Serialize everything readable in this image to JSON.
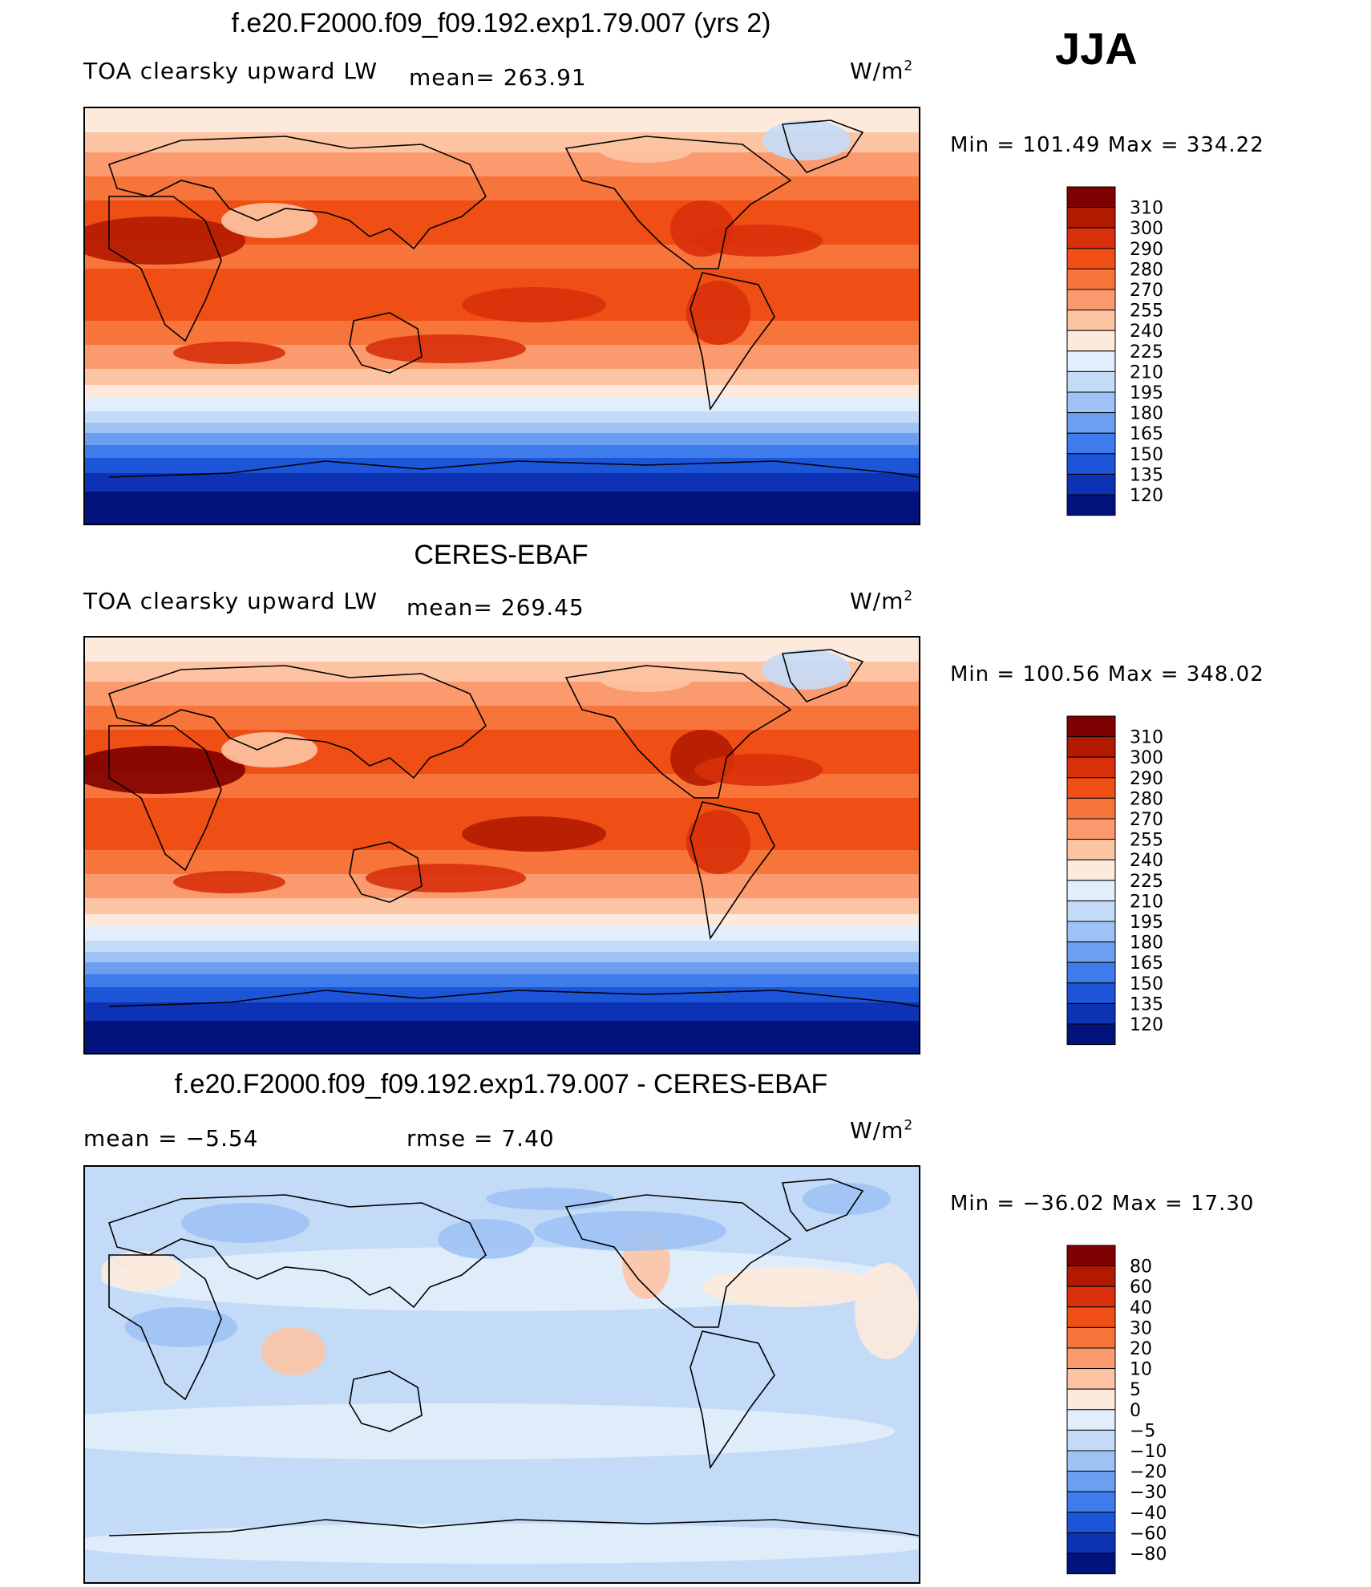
{
  "season": "JJA",
  "panels": [
    {
      "title": "f.e20.F2000.f09_f09.192.exp1.79.007 (yrs 2)",
      "left_label": "TOA clearsky upward LW",
      "center_label": "mean= 263.91",
      "right_label": "W/m",
      "right_sup": "2",
      "minmax": "Min  =  101.49  Max  =  334.22"
    },
    {
      "title": "CERES-EBAF",
      "left_label": "TOA clearsky upward LW",
      "center_label": "mean= 269.45",
      "right_label": "W/m",
      "right_sup": "2",
      "minmax": "Min  =  100.56  Max  =  348.02"
    },
    {
      "title": "f.e20.F2000.f09_f09.192.exp1.79.007 - CERES-EBAF",
      "left_label": "mean  =    −5.54",
      "center_label": "rmse  =     7.40",
      "right_label": "W/m",
      "right_sup": "2",
      "minmax": "Min  =  −36.02  Max  =    17.30"
    }
  ],
  "colorbars": {
    "absolute": {
      "ticks": [
        "310",
        "300",
        "290",
        "280",
        "270",
        "255",
        "240",
        "225",
        "210",
        "195",
        "180",
        "165",
        "150",
        "135",
        "120"
      ],
      "colors": [
        "#7f0000",
        "#b21a00",
        "#d8300a",
        "#ef4f14",
        "#f7743a",
        "#fb9a6e",
        "#fdc4a4",
        "#feeadc",
        "#e2eefb",
        "#c4dbf8",
        "#9ec2f5",
        "#6d9ff0",
        "#3f7ceb",
        "#1d55d9",
        "#0d32b4",
        "#03137d"
      ]
    },
    "difference": {
      "ticks": [
        "80",
        "60",
        "40",
        "30",
        "20",
        "10",
        "5",
        "0",
        "−5",
        "−10",
        "−20",
        "−30",
        "−40",
        "−60",
        "−80"
      ],
      "colors": [
        "#7f0000",
        "#b21a00",
        "#d8300a",
        "#ef4f14",
        "#f7743a",
        "#fb9a6e",
        "#fdc4a4",
        "#feeadc",
        "#e2eefb",
        "#c4dbf8",
        "#9ec2f5",
        "#6d9ff0",
        "#3f7ceb",
        "#1d55d9",
        "#0d32b4",
        "#03137d"
      ]
    }
  }
}
